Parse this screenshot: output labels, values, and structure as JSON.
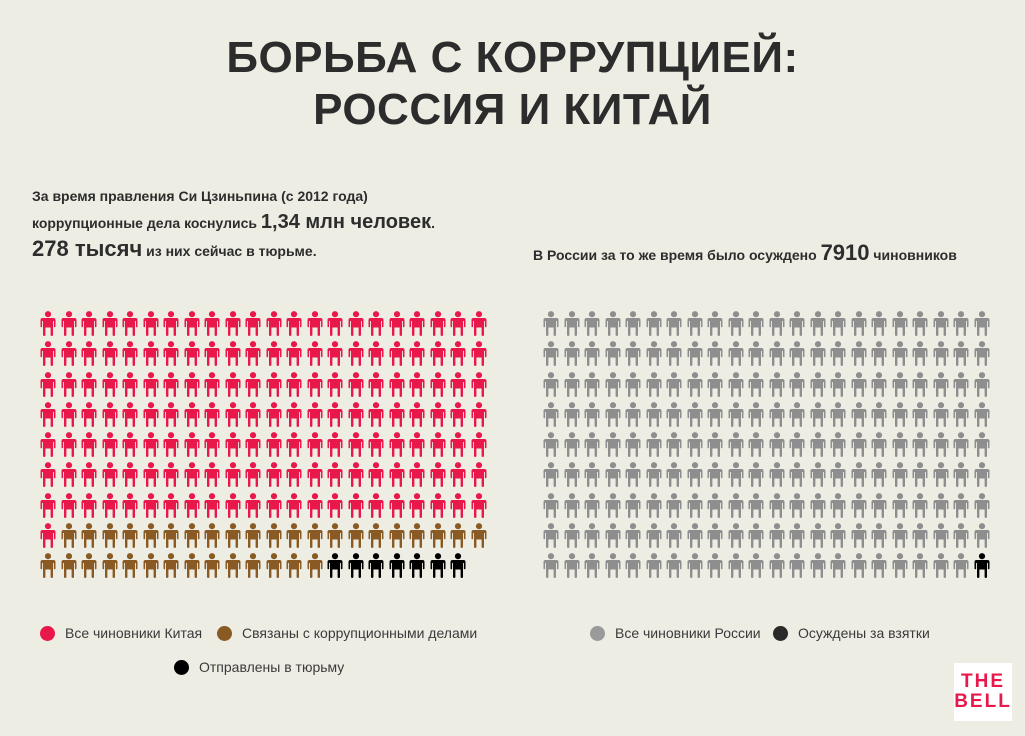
{
  "title": {
    "line1": "БОРЬБА С КОРРУПЦИЕЙ:",
    "line2": "РОССИЯ И КИТАЙ"
  },
  "china": {
    "text_line1": "За время правления Си Цзиньпина (с 2012 года)",
    "text_line2_pre": "коррупционные дела коснулись",
    "text_line2_num": "1,34 млн человек",
    "text_line2_post": ".",
    "text_line3_num": "278 тысяч",
    "text_line3_post": "из них сейчас в тюрьме.",
    "grid": {
      "columns": 22,
      "rows": 9,
      "red_count": 155,
      "brown_count": 35,
      "black_count": 7
    }
  },
  "russia": {
    "text_pre": "В России за то же время было осуждено",
    "text_num": "7910",
    "text_post": "чиновников",
    "grid": {
      "columns": 22,
      "rows": 9,
      "grey_count": 197,
      "black_count": 1
    }
  },
  "legend": {
    "china_all": "Все чиновники Китая",
    "china_corruption": "Связаны с коррупционными делами",
    "china_prison": "Отправлены в тюрьму",
    "russia_all": "Все чиновники России",
    "russia_convicted": "Осуждены за взятки"
  },
  "logo": {
    "line1": "THE",
    "line2": "BELL"
  },
  "colors": {
    "background": "#eeede4",
    "red": "#e8194a",
    "brown": "#8a5a25",
    "black": "#000000",
    "grey": "#8e8e8e",
    "logo_text": "#e8194a"
  }
}
